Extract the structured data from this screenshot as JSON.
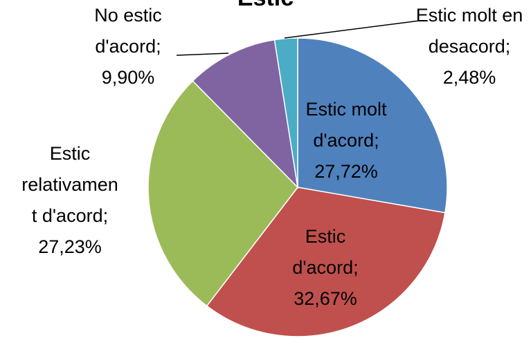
{
  "chart_data": {
    "type": "pie",
    "title": "Estic",
    "categories": [
      "Estic molt d'acord",
      "Estic d'acord",
      "Estic relativament d'acord",
      "No estic d'acord",
      "Estic molt en desacord"
    ],
    "values": [
      27.72,
      32.67,
      27.23,
      9.9,
      2.48
    ],
    "value_labels": [
      "27,72%",
      "32,67%",
      "27,23%",
      "9,90%",
      "2,48%"
    ],
    "label_separator": ";",
    "colors": [
      "#4f81bd",
      "#c0504d",
      "#9bbb59",
      "#8064a2",
      "#4bacc6"
    ]
  }
}
